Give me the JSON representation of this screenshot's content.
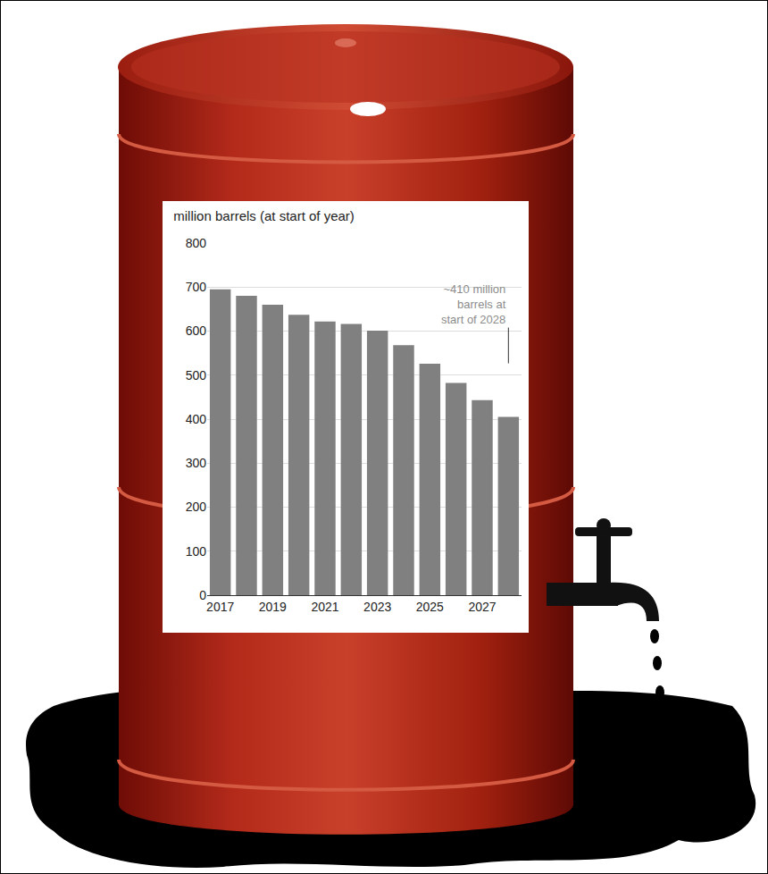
{
  "chart_data": {
    "type": "bar",
    "title": "million barrels (at start of year)",
    "categories": [
      "2017",
      null,
      "2019",
      null,
      "2021",
      null,
      "2023",
      null,
      "2025",
      null,
      "2027",
      null
    ],
    "values": [
      695,
      680,
      660,
      637,
      622,
      616,
      601,
      568,
      526,
      482,
      443,
      405
    ],
    "color": "#808080",
    "ylim": [
      0,
      800
    ],
    "yticks": [
      0,
      100,
      200,
      300,
      400,
      500,
      600,
      700,
      800
    ],
    "grid": true,
    "annotation": "~410 million barrels at start of 2028"
  }
}
